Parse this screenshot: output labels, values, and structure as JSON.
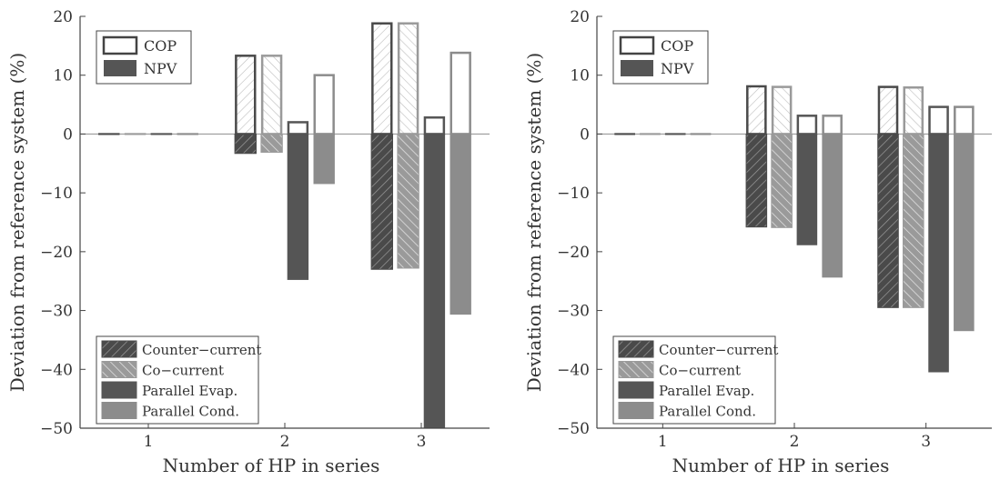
{
  "colors": {
    "counter_current": "#4a4a4a",
    "co_current": "#9a9a9a",
    "parallel_evap": "#555555",
    "parallel_cond": "#8c8c8c",
    "axis": "#444444",
    "zero_line": "#9a9a9a"
  },
  "legend_metric": [
    "COP",
    "NPV"
  ],
  "legend_config": [
    "Counter−current",
    "Co−current",
    "Parallel Evap.",
    "Parallel Cond."
  ],
  "chart_data": [
    {
      "type": "bar",
      "xlabel": "Number of HP in series",
      "ylabel": "Deviation from reference system (%)",
      "categories": [
        "1",
        "2",
        "3"
      ],
      "ylim": [
        -50,
        20
      ],
      "yticks": [
        -50,
        -40,
        -30,
        -20,
        -10,
        0,
        10,
        20
      ],
      "series": [
        {
          "name": "Counter−current",
          "metric": "COP",
          "values": [
            0,
            13.5,
            19
          ]
        },
        {
          "name": "Co−current",
          "metric": "COP",
          "values": [
            0,
            13.5,
            19
          ]
        },
        {
          "name": "Parallel Evap.",
          "metric": "COP",
          "values": [
            0,
            2.2,
            3
          ]
        },
        {
          "name": "Parallel Cond.",
          "metric": "COP",
          "values": [
            0,
            10.2,
            14
          ]
        },
        {
          "name": "Counter−current",
          "metric": "NPV",
          "values": [
            0,
            -3.3,
            -23
          ]
        },
        {
          "name": "Co−current",
          "metric": "NPV",
          "values": [
            0,
            -3.1,
            -22.8
          ]
        },
        {
          "name": "Parallel Evap.",
          "metric": "NPV",
          "values": [
            0,
            -24.8,
            -50
          ]
        },
        {
          "name": "Parallel Cond.",
          "metric": "NPV",
          "values": [
            0,
            -8.5,
            -30.7
          ]
        }
      ],
      "legend_positions": [
        "top-left",
        "bottom-left"
      ],
      "grid": false
    },
    {
      "type": "bar",
      "xlabel": "Number of HP in series",
      "ylabel": "Deviation from reference system (%)",
      "categories": [
        "1",
        "2",
        "3"
      ],
      "ylim": [
        -50,
        20
      ],
      "yticks": [
        -50,
        -40,
        -30,
        -20,
        -10,
        0,
        10,
        20
      ],
      "series": [
        {
          "name": "Counter−current",
          "metric": "COP",
          "values": [
            0,
            8.3,
            8.2
          ]
        },
        {
          "name": "Co−current",
          "metric": "COP",
          "values": [
            0,
            8.2,
            8.1
          ]
        },
        {
          "name": "Parallel Evap.",
          "metric": "COP",
          "values": [
            0,
            3.3,
            4.8
          ]
        },
        {
          "name": "Parallel Cond.",
          "metric": "COP",
          "values": [
            0,
            3.3,
            4.8
          ]
        },
        {
          "name": "Counter−current",
          "metric": "NPV",
          "values": [
            0,
            -15.8,
            -29.5
          ]
        },
        {
          "name": "Co−current",
          "metric": "NPV",
          "values": [
            0,
            -15.9,
            -29.5
          ]
        },
        {
          "name": "Parallel Evap.",
          "metric": "NPV",
          "values": [
            0,
            -18.9,
            -40.5
          ]
        },
        {
          "name": "Parallel Cond.",
          "metric": "NPV",
          "values": [
            0,
            -24.4,
            -33.5
          ]
        }
      ],
      "legend_positions": [
        "top-left",
        "bottom-left"
      ],
      "grid": false
    }
  ]
}
